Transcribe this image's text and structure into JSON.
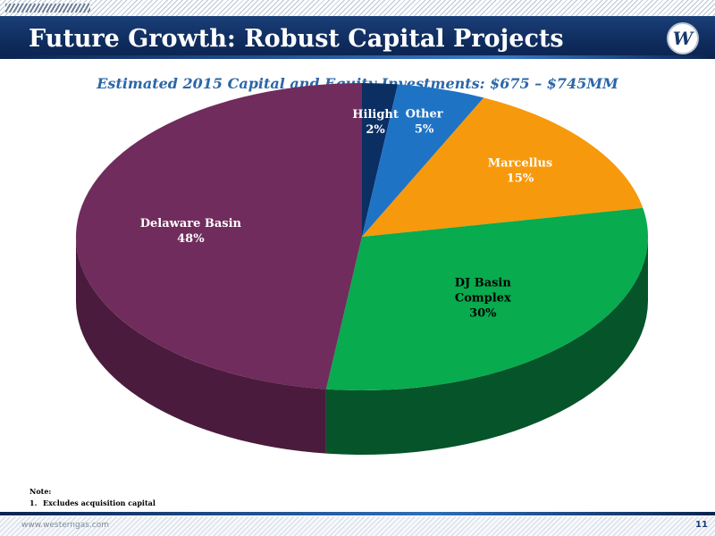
{
  "slide": {
    "title": "Future Growth: Robust Capital Projects",
    "subtitle": "Estimated 2015 Capital and Equity Investments: $675 – $745MM",
    "logo_icon": "w-logo-icon",
    "note_heading": "Note:",
    "notes": [
      {
        "num": "1.",
        "text": "Excludes acquisition capital"
      }
    ],
    "footer_url": "www.westerngas.com",
    "page_number": "11",
    "colors": {
      "title_bar": "#0f2c5e",
      "subtitle": "#2b67a8"
    }
  },
  "chart_data": {
    "type": "pie",
    "style": "3d",
    "start": "12 o'clock, clockwise",
    "slices": [
      {
        "label": [
          "Hilight"
        ],
        "value": 2,
        "value_label": "2%",
        "color": "#0b2e63",
        "side": "#061a3a",
        "label_color": "#ffffff"
      },
      {
        "label": [
          "Other"
        ],
        "value": 5,
        "value_label": "5%",
        "color": "#1f73c4",
        "side": "#124d87",
        "label_color": "#ffffff"
      },
      {
        "label": [
          "Marcellus"
        ],
        "value": 15,
        "value_label": "15%",
        "color": "#f7990c",
        "side": "#b36d05",
        "label_color": "#ffffff"
      },
      {
        "label": [
          "DJ Basin",
          "Complex"
        ],
        "value": 30,
        "value_label": "30%",
        "color": "#08ab4e",
        "side": "#05542a",
        "label_color": "#000000"
      },
      {
        "label": [
          "Delaware Basin"
        ],
        "value": 48,
        "value_label": "48%",
        "color": "#702c5d",
        "side": "#4a1b3d",
        "label_color": "#ffffff"
      }
    ]
  }
}
